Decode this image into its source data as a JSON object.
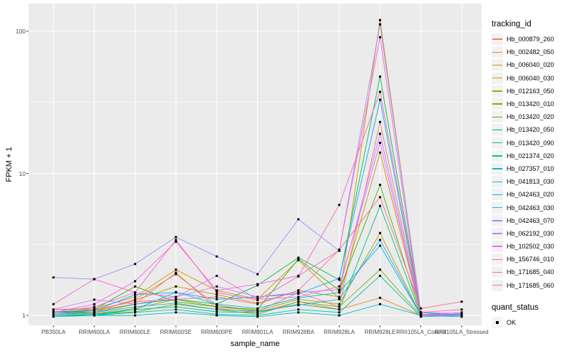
{
  "chart_data": {
    "type": "line",
    "title": "",
    "xlabel": "sample_name",
    "ylabel": "FPKM + 1",
    "y_scale": "log10",
    "y_ticks": [
      1,
      10,
      100
    ],
    "ylim": [
      0.85,
      150
    ],
    "grid": true,
    "legend_position": "right",
    "panel_bg": "#EBEBEB",
    "grid_color": "#FFFFFF",
    "point_color": "#000000",
    "categories": [
      "PB350LA",
      "RRIM600LA",
      "RRIM600LE",
      "RRIM600SE",
      "RRIM600PE",
      "RRIM901LA",
      "RRIM928BA",
      "RRIM928LA",
      "RRIM928LE",
      "RRII105LA_Control",
      "RRII105LA_Stressed"
    ],
    "series": [
      {
        "name": "Hb_000879_260",
        "color": "#F8766D",
        "values": [
          1.07,
          1.05,
          1.3,
          1.95,
          1.18,
          1.07,
          1.45,
          1.15,
          23.0,
          1.02,
          1.0
        ]
      },
      {
        "name": "Hb_002482_050",
        "color": "#EA8331",
        "values": [
          1.02,
          1.08,
          1.2,
          2.0,
          1.12,
          1.05,
          1.25,
          1.1,
          1.33,
          1.0,
          1.0
        ]
      },
      {
        "name": "Hb_006040_020",
        "color": "#D89000",
        "values": [
          1.1,
          1.12,
          1.35,
          2.1,
          1.5,
          1.3,
          2.45,
          1.32,
          120.0,
          1.05,
          1.0
        ]
      },
      {
        "name": "Hb_006040_030",
        "color": "#C09B00",
        "values": [
          1.05,
          1.08,
          1.28,
          1.6,
          1.4,
          1.22,
          1.5,
          1.35,
          14.0,
          1.02,
          1.0
        ]
      },
      {
        "name": "Hb_012163_050",
        "color": "#A3A500",
        "values": [
          1.02,
          1.03,
          1.12,
          1.3,
          1.15,
          1.08,
          1.3,
          1.2,
          3.8,
          1.0,
          1.0
        ]
      },
      {
        "name": "Hb_013420_010",
        "color": "#7CAE00",
        "values": [
          1.0,
          1.02,
          1.06,
          1.2,
          1.1,
          1.02,
          1.25,
          1.15,
          2.1,
          1.0,
          1.0
        ]
      },
      {
        "name": "Hb_013420_020",
        "color": "#39B600",
        "values": [
          1.05,
          1.1,
          1.6,
          1.25,
          1.15,
          1.1,
          2.5,
          1.5,
          8.3,
          1.02,
          1.0
        ]
      },
      {
        "name": "Hb_013420_050",
        "color": "#00BB4E",
        "values": [
          1.05,
          1.05,
          1.2,
          1.3,
          1.2,
          1.63,
          2.55,
          1.78,
          48.0,
          1.05,
          1.0
        ]
      },
      {
        "name": "Hb_013420_090",
        "color": "#00BF7D",
        "values": [
          1.0,
          1.0,
          1.1,
          1.15,
          1.06,
          1.05,
          1.2,
          1.1,
          5.9,
          1.0,
          1.0
        ]
      },
      {
        "name": "Hb_021374_020",
        "color": "#00C1A3",
        "values": [
          1.0,
          1.0,
          1.05,
          1.1,
          1.02,
          1.0,
          1.1,
          1.05,
          1.9,
          0.98,
          1.0
        ]
      },
      {
        "name": "Hb_027357_010",
        "color": "#00BFC4",
        "values": [
          0.98,
          1.0,
          1.0,
          1.05,
          1.0,
          0.98,
          1.05,
          1.0,
          1.2,
          1.0,
          0.98
        ]
      },
      {
        "name": "Hb_041813_030",
        "color": "#00BAE0",
        "values": [
          1.0,
          1.02,
          1.1,
          1.46,
          1.2,
          1.12,
          1.33,
          1.45,
          3.1,
          1.0,
          1.0
        ]
      },
      {
        "name": "Hb_042463_020",
        "color": "#00B0F6",
        "values": [
          1.05,
          1.08,
          1.4,
          1.45,
          1.3,
          1.35,
          1.42,
          1.82,
          33.0,
          1.02,
          1.02
        ]
      },
      {
        "name": "Hb_042463_030",
        "color": "#35A2FF",
        "values": [
          1.02,
          1.05,
          1.15,
          1.22,
          1.1,
          1.07,
          1.18,
          1.3,
          3.4,
          1.0,
          1.02
        ]
      },
      {
        "name": "Hb_042463_070",
        "color": "#9590FF",
        "values": [
          1.85,
          1.8,
          2.3,
          3.56,
          2.6,
          1.95,
          4.75,
          2.85,
          112.0,
          1.05,
          1.03
        ]
      },
      {
        "name": "Hb_062192_030",
        "color": "#C77CFF",
        "values": [
          1.1,
          1.29,
          1.2,
          1.35,
          1.6,
          1.35,
          1.45,
          1.52,
          19.0,
          1.0,
          1.0
        ]
      },
      {
        "name": "Hb_102502_030",
        "color": "#E76BF3",
        "values": [
          1.05,
          1.15,
          1.45,
          1.35,
          1.9,
          1.3,
          1.35,
          1.6,
          16.4,
          1.02,
          1.0
        ]
      },
      {
        "name": "Hb_156746_010",
        "color": "#FA62DB",
        "values": [
          1.05,
          1.2,
          1.74,
          3.3,
          1.5,
          1.66,
          1.9,
          2.87,
          91.0,
          1.0,
          1.05
        ]
      },
      {
        "name": "Hb_171685_040",
        "color": "#FF62BC",
        "values": [
          1.2,
          1.8,
          1.45,
          3.4,
          1.45,
          1.28,
          1.88,
          6.0,
          37.5,
          1.05,
          1.1
        ]
      },
      {
        "name": "Hb_171685_060",
        "color": "#FF6A98",
        "values": [
          1.1,
          1.1,
          1.25,
          1.3,
          1.35,
          1.2,
          1.5,
          2.9,
          6.8,
          1.12,
          1.25
        ]
      }
    ]
  },
  "legend": {
    "tracking_title": "tracking_id",
    "quant_title": "quant_status",
    "quant_items": [
      {
        "label": "OK"
      }
    ]
  }
}
